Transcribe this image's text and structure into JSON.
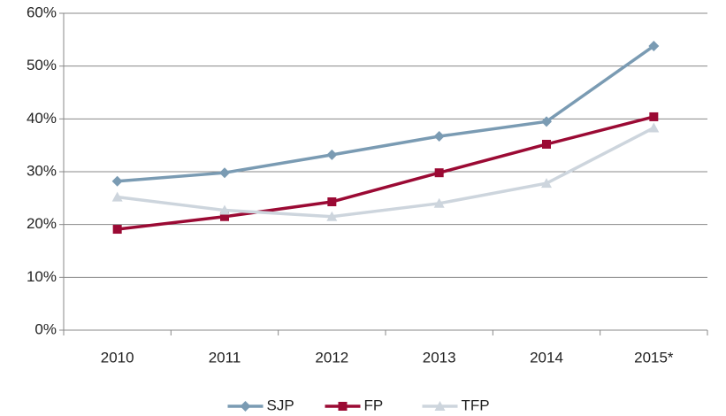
{
  "chart_data": {
    "type": "line",
    "categories": [
      "2010",
      "2011",
      "2012",
      "2013",
      "2014",
      "2015*"
    ],
    "series": [
      {
        "name": "SJP",
        "color": "#7a9bb3",
        "marker": "diamond",
        "values": [
          28.2,
          29.8,
          33.2,
          36.7,
          39.5,
          53.8
        ]
      },
      {
        "name": "FP",
        "color": "#9b0a34",
        "marker": "square",
        "values": [
          19.1,
          21.5,
          24.3,
          29.8,
          35.2,
          40.4
        ]
      },
      {
        "name": "TFP",
        "color": "#cdd5dd",
        "marker": "triangle",
        "values": [
          25.2,
          22.7,
          21.5,
          24.0,
          27.8,
          38.3
        ]
      }
    ],
    "ylim": [
      0,
      60
    ],
    "yticks": [
      {
        "value": 0,
        "label": "0%"
      },
      {
        "value": 10,
        "label": "10%"
      },
      {
        "value": 20,
        "label": "20%"
      },
      {
        "value": 30,
        "label": "30%"
      },
      {
        "value": 40,
        "label": "40%"
      },
      {
        "value": 50,
        "label": "50%"
      },
      {
        "value": 60,
        "label": "60%"
      }
    ],
    "grid": true,
    "legend": "bottom"
  }
}
